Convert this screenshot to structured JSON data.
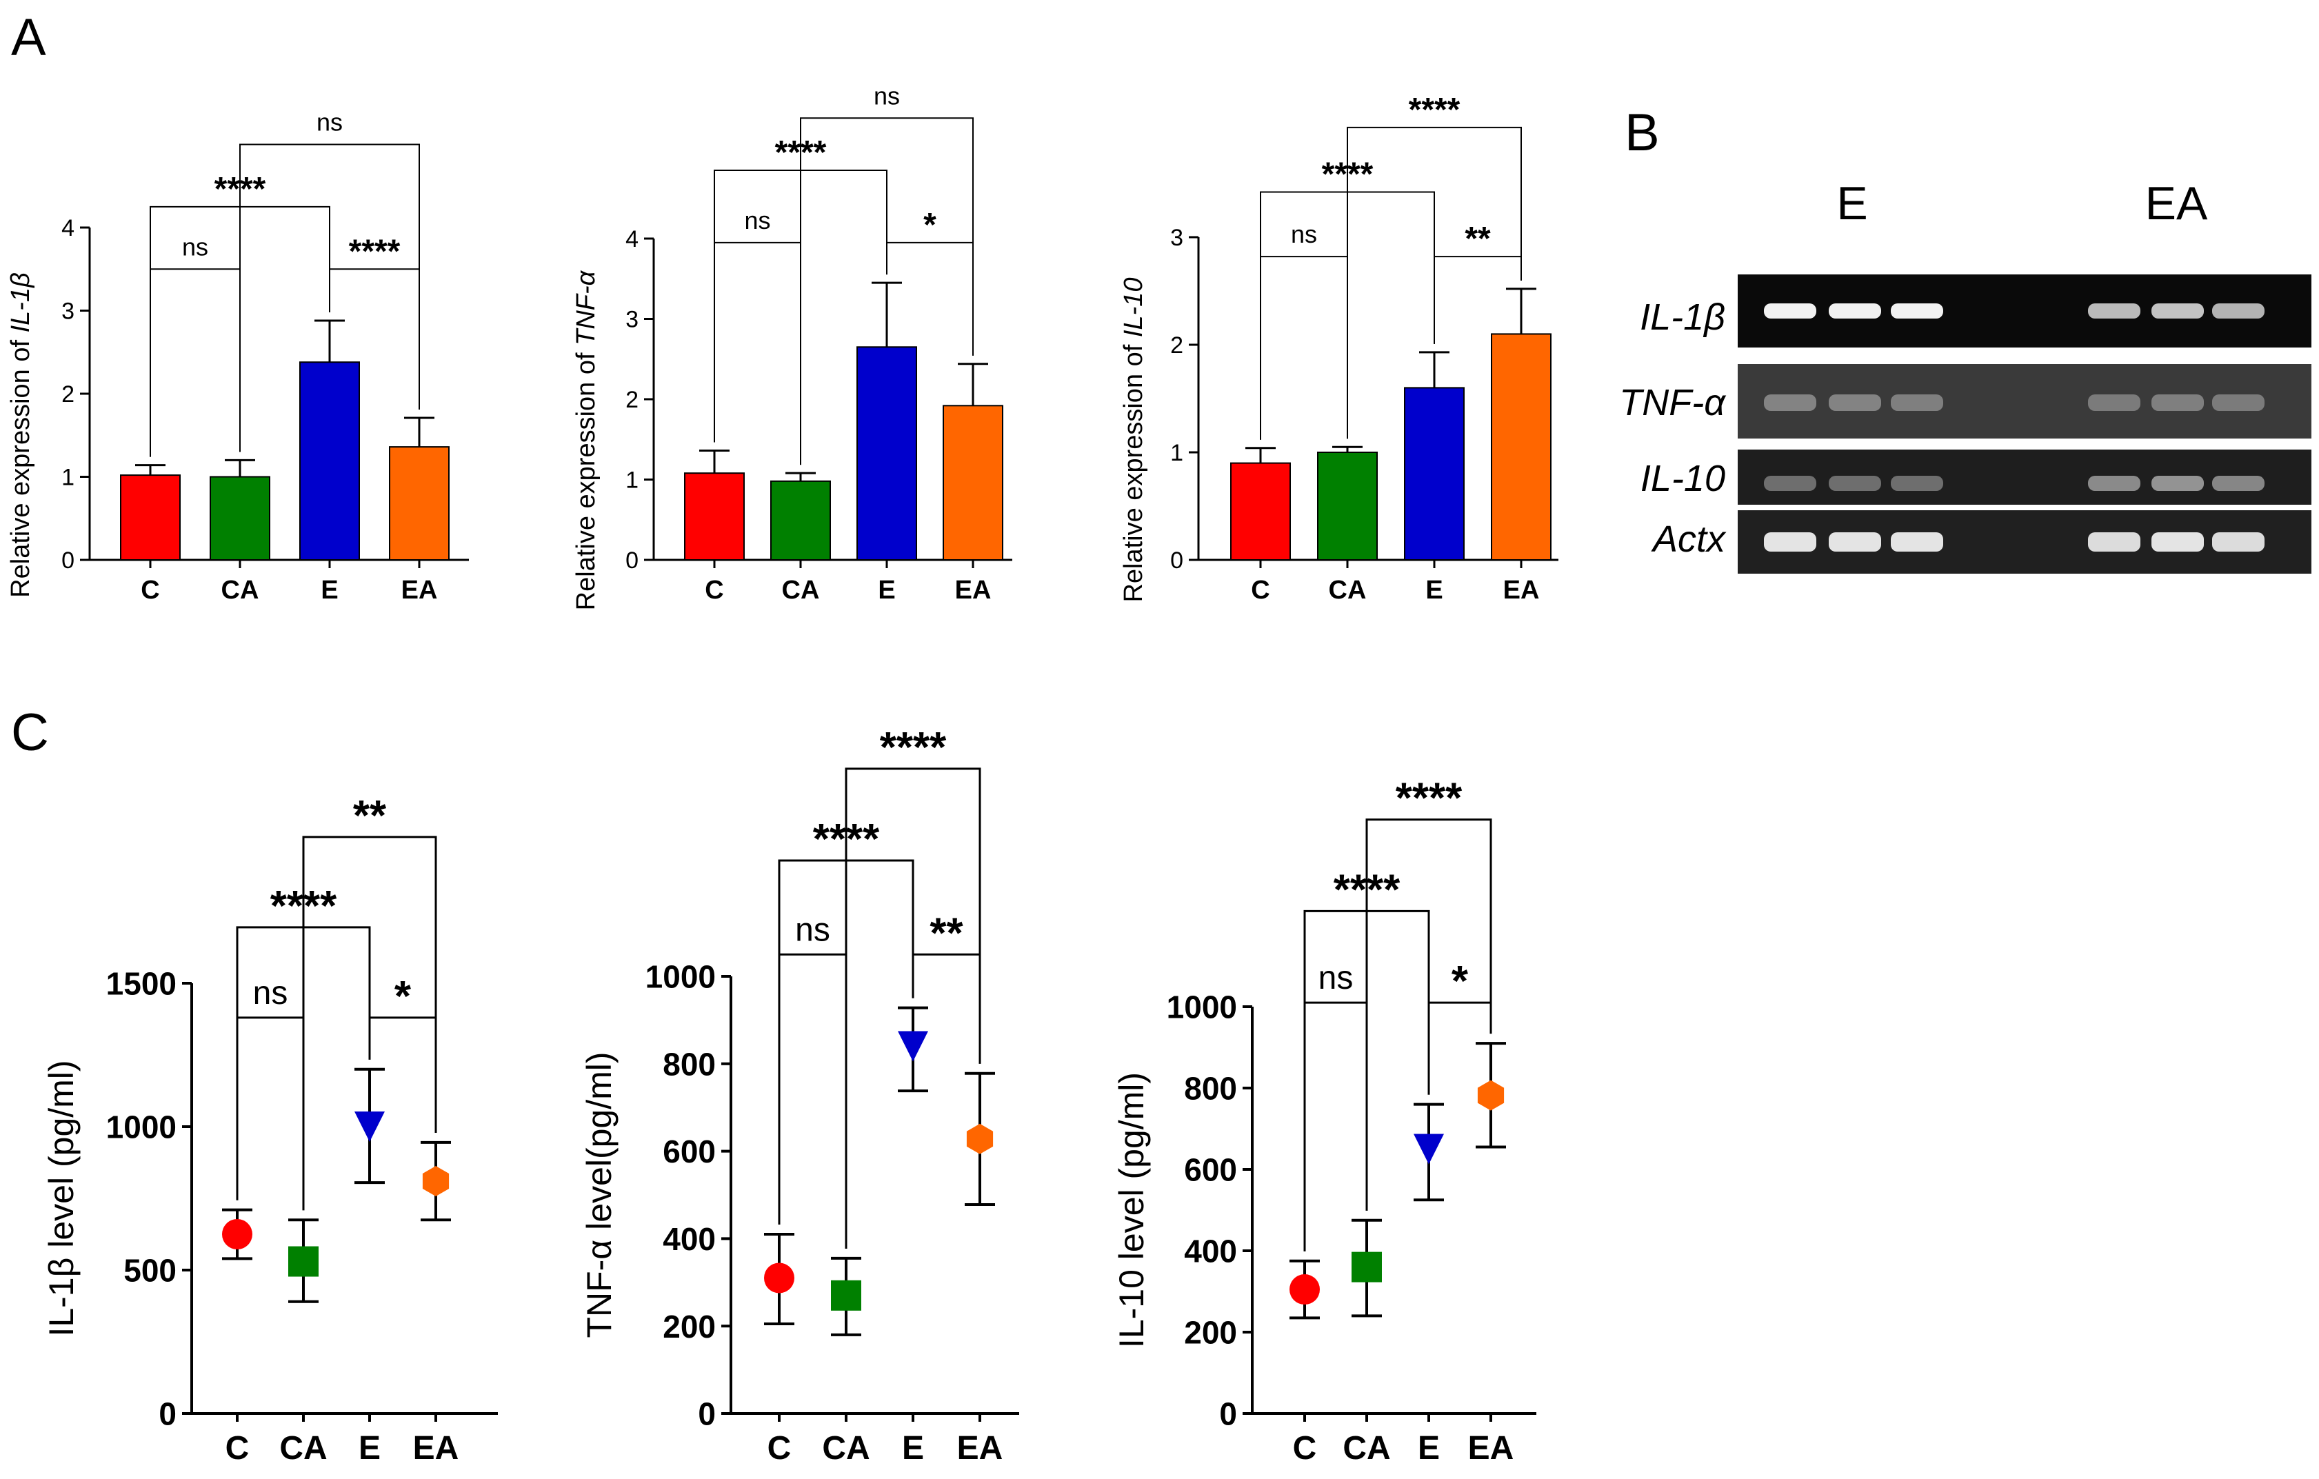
{
  "panel_labels": {
    "a": "A",
    "b": "B",
    "c": "C"
  },
  "groups": [
    "C",
    "CA",
    "E",
    "EA"
  ],
  "colors": {
    "C": "#ff0000",
    "CA": "#008000",
    "E": "#0000cc",
    "EA": "#ff6600"
  },
  "gel": {
    "group_labels": [
      "E",
      "EA"
    ],
    "row_labels": [
      "IL-1β",
      "TNF-α",
      "IL-10",
      "Actx"
    ]
  },
  "chart_data": [
    {
      "id": "a1",
      "type": "bar",
      "title": "",
      "ylabel_prefix": "Relative expression of ",
      "ylabel_gene": "IL-1β",
      "categories": [
        "C",
        "CA",
        "E",
        "EA"
      ],
      "values": [
        1.02,
        1.0,
        2.38,
        1.36
      ],
      "errors": [
        0.12,
        0.2,
        0.5,
        0.35
      ],
      "ylim": [
        0,
        4
      ],
      "yticks": [
        0,
        1,
        2,
        3,
        4
      ],
      "brackets": [
        {
          "from": 0,
          "to": 1,
          "level": 3.5,
          "label": "ns"
        },
        {
          "from": 2,
          "to": 3,
          "level": 3.5,
          "label": "****"
        },
        {
          "from": 0,
          "to": 2,
          "level": 4.25,
          "label": "****"
        },
        {
          "from": 1,
          "to": 3,
          "level": 5.0,
          "label": "ns"
        }
      ]
    },
    {
      "id": "a2",
      "type": "bar",
      "title": "",
      "ylabel_prefix": "Relative expression of ",
      "ylabel_gene": "TNF-α",
      "categories": [
        "C",
        "CA",
        "E",
        "EA"
      ],
      "values": [
        1.08,
        0.98,
        2.65,
        1.92
      ],
      "errors": [
        0.28,
        0.1,
        0.8,
        0.52
      ],
      "ylim": [
        0,
        4
      ],
      "yticks": [
        0,
        1,
        2,
        3,
        4
      ],
      "brackets": [
        {
          "from": 0,
          "to": 1,
          "level": 3.95,
          "label": "ns"
        },
        {
          "from": 2,
          "to": 3,
          "level": 3.95,
          "label": "*"
        },
        {
          "from": 0,
          "to": 2,
          "level": 4.85,
          "label": "****"
        },
        {
          "from": 1,
          "to": 3,
          "level": 5.5,
          "label": "ns"
        }
      ]
    },
    {
      "id": "a3",
      "type": "bar",
      "title": "",
      "ylabel_prefix": "Relative expression of ",
      "ylabel_gene": "IL-10",
      "categories": [
        "C",
        "CA",
        "E",
        "EA"
      ],
      "values": [
        0.9,
        1.0,
        1.6,
        2.1
      ],
      "errors": [
        0.14,
        0.05,
        0.33,
        0.42
      ],
      "ylim": [
        0,
        3
      ],
      "yticks": [
        0,
        1,
        2,
        3
      ],
      "brackets": [
        {
          "from": 0,
          "to": 1,
          "level": 2.82,
          "label": "ns"
        },
        {
          "from": 2,
          "to": 3,
          "level": 2.82,
          "label": "**"
        },
        {
          "from": 0,
          "to": 2,
          "level": 3.42,
          "label": "****"
        },
        {
          "from": 1,
          "to": 3,
          "level": 4.02,
          "label": "****"
        }
      ]
    },
    {
      "id": "c1",
      "type": "scatter",
      "title": "",
      "ylabel": "IL-1β level (pg/ml)",
      "categories": [
        "C",
        "CA",
        "E",
        "EA"
      ],
      "values": [
        625,
        530,
        1000,
        810
      ],
      "err_low": [
        540,
        390,
        805,
        675
      ],
      "err_high": [
        710,
        675,
        1200,
        945
      ],
      "markers": [
        "circle",
        "square",
        "triangle-down",
        "hexagon"
      ],
      "ylim": [
        0,
        1500
      ],
      "yticks": [
        0,
        500,
        1000,
        1500
      ],
      "brackets": [
        {
          "from": 0,
          "to": 1,
          "level": 1380,
          "label": "ns"
        },
        {
          "from": 2,
          "to": 3,
          "level": 1380,
          "label": "*"
        },
        {
          "from": 0,
          "to": 2,
          "level": 1695,
          "label": "****"
        },
        {
          "from": 1,
          "to": 3,
          "level": 2010,
          "label": "**"
        }
      ]
    },
    {
      "id": "c2",
      "type": "scatter",
      "title": "",
      "ylabel": "TNF-α level(pg/ml)",
      "categories": [
        "C",
        "CA",
        "E",
        "EA"
      ],
      "values": [
        310,
        270,
        840,
        628
      ],
      "err_low": [
        205,
        180,
        738,
        478
      ],
      "err_high": [
        410,
        355,
        928,
        778
      ],
      "markers": [
        "circle",
        "square",
        "triangle-down",
        "hexagon"
      ],
      "ylim": [
        0,
        1000
      ],
      "yticks": [
        0,
        200,
        400,
        600,
        800,
        1000
      ],
      "brackets": [
        {
          "from": 0,
          "to": 1,
          "level": 1050,
          "label": "ns"
        },
        {
          "from": 2,
          "to": 3,
          "level": 1050,
          "label": "**"
        },
        {
          "from": 0,
          "to": 2,
          "level": 1265,
          "label": "****"
        },
        {
          "from": 1,
          "to": 3,
          "level": 1475,
          "label": "****"
        }
      ]
    },
    {
      "id": "c3",
      "type": "scatter",
      "title": "",
      "ylabel": "IL-10 level (pg/ml)",
      "categories": [
        "C",
        "CA",
        "E",
        "EA"
      ],
      "values": [
        305,
        360,
        650,
        782
      ],
      "err_low": [
        235,
        240,
        525,
        655
      ],
      "err_high": [
        375,
        475,
        760,
        910
      ],
      "markers": [
        "circle",
        "square",
        "triangle-down",
        "hexagon"
      ],
      "ylim": [
        0,
        1000
      ],
      "yticks": [
        0,
        200,
        400,
        600,
        800,
        1000
      ],
      "brackets": [
        {
          "from": 0,
          "to": 1,
          "level": 1010,
          "label": "ns"
        },
        {
          "from": 2,
          "to": 3,
          "level": 1010,
          "label": "*"
        },
        {
          "from": 0,
          "to": 2,
          "level": 1235,
          "label": "****"
        },
        {
          "from": 1,
          "to": 3,
          "level": 1460,
          "label": "****"
        }
      ]
    }
  ]
}
